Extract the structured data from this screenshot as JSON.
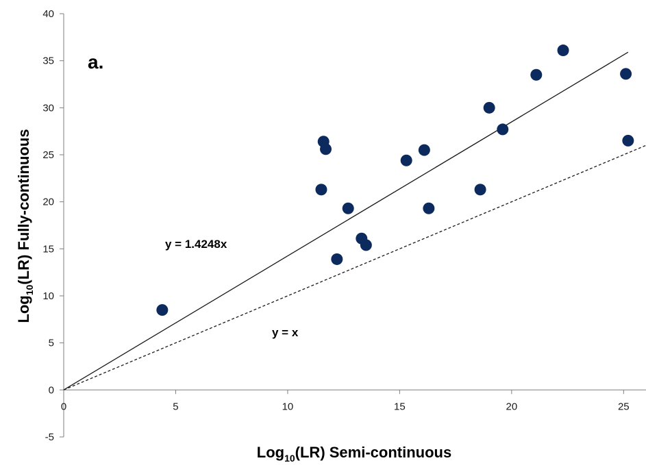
{
  "chart_data": {
    "type": "scatter",
    "panel_label": "a.",
    "xlabel_prefix": "Log",
    "xlabel_sub": "10",
    "xlabel_suffix": "(LR) Semi-continuous",
    "ylabel_prefix": "Log",
    "ylabel_sub": "10",
    "ylabel_suffix": "(LR) Fully-continuous",
    "xlim": [
      0,
      26
    ],
    "ylim": [
      -5,
      40
    ],
    "xticks": [
      0,
      5,
      10,
      15,
      20,
      25
    ],
    "yticks": [
      -5,
      0,
      5,
      10,
      15,
      20,
      25,
      30,
      35,
      40
    ],
    "point_color": "#0d2a5e",
    "x": [
      4.4,
      11.5,
      11.6,
      11.7,
      12.2,
      12.7,
      13.3,
      13.5,
      15.3,
      16.1,
      16.3,
      18.6,
      19.0,
      19.6,
      21.1,
      22.3,
      25.1,
      25.2
    ],
    "y": [
      8.5,
      21.3,
      26.4,
      25.6,
      13.9,
      19.3,
      16.1,
      15.4,
      24.4,
      25.5,
      19.3,
      21.3,
      30.0,
      27.7,
      33.5,
      36.1,
      33.6,
      26.5
    ],
    "lines": [
      {
        "label": "y = 1.4248x",
        "slope": 1.4248,
        "x_end": 25.2,
        "dash": false
      },
      {
        "label": "y = x",
        "slope": 1.0,
        "x_end": 26,
        "dash": true
      }
    ]
  }
}
